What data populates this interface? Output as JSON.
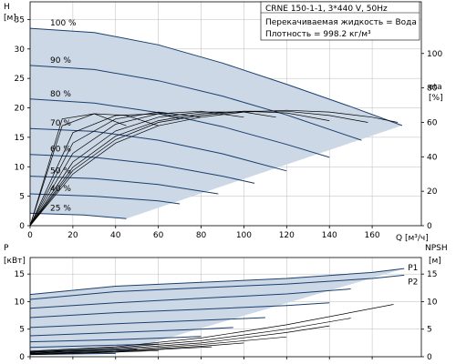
{
  "chart_data": [
    {
      "type": "line",
      "title": "CRNE 150-1-1, 3*440 V, 50Hz",
      "fluid_text": "Перекачиваемая жидкость = Вода",
      "density_text": "Плотность = 998.2 кг/м³",
      "left_axis": {
        "title_top": "H",
        "title_unit": "[м]",
        "ticks": [
          0,
          5,
          10,
          15,
          20,
          25,
          30,
          35
        ],
        "range": [
          0,
          38
        ]
      },
      "right_axis": {
        "title_top": "eta",
        "title_unit": "[%]",
        "ticks": [
          0,
          20,
          40,
          60,
          80,
          100
        ],
        "range": [
          0,
          130
        ]
      },
      "x_axis": {
        "label": "Q [м³/ч]",
        "ticks": [
          0,
          20,
          40,
          60,
          80,
          100,
          120,
          140,
          160
        ],
        "range": [
          0,
          183
        ]
      },
      "head_curves": [
        {
          "name": "100 %",
          "x": [
            0,
            30,
            60,
            90,
            120,
            150,
            174
          ],
          "y": [
            33.5,
            32.8,
            30.7,
            27.6,
            24.0,
            20.2,
            17.0
          ]
        },
        {
          "name": "90 %",
          "x": [
            0,
            30,
            60,
            90,
            120,
            155
          ],
          "y": [
            27.2,
            26.5,
            24.6,
            22.0,
            18.8,
            14.5
          ]
        },
        {
          "name": "80 %",
          "x": [
            0,
            30,
            60,
            90,
            120,
            140
          ],
          "y": [
            21.5,
            20.8,
            19.2,
            16.8,
            13.8,
            11.6
          ]
        },
        {
          "name": "70 %",
          "x": [
            0,
            30,
            60,
            90,
            120
          ],
          "y": [
            16.5,
            16.0,
            14.5,
            12.2,
            9.3
          ]
        },
        {
          "name": "60 %",
          "x": [
            0,
            30,
            60,
            90,
            105
          ],
          "y": [
            12.1,
            11.6,
            10.4,
            8.4,
            7.2
          ]
        },
        {
          "name": "50 %",
          "x": [
            0,
            30,
            60,
            88
          ],
          "y": [
            8.4,
            8.0,
            7.0,
            5.4
          ]
        },
        {
          "name": "40 %",
          "x": [
            0,
            30,
            60,
            70
          ],
          "y": [
            5.4,
            5.0,
            4.2,
            3.7
          ]
        },
        {
          "name": "25 %",
          "x": [
            0,
            25,
            45
          ],
          "y": [
            2.1,
            1.8,
            1.2
          ]
        }
      ],
      "efficiency_curves": [
        {
          "x": [
            0,
            20,
            40,
            60,
            80,
            100,
            120,
            140,
            160,
            172
          ],
          "y": [
            0,
            30,
            48,
            58,
            63,
            66,
            67,
            66,
            63,
            60
          ]
        },
        {
          "x": [
            0,
            20,
            40,
            60,
            80,
            100,
            120,
            140,
            158
          ],
          "y": [
            0,
            32,
            50,
            60,
            64,
            66.5,
            66.5,
            64,
            60
          ]
        },
        {
          "x": [
            0,
            20,
            40,
            60,
            80,
            100,
            120,
            140
          ],
          "y": [
            0,
            34,
            52,
            61,
            65,
            66.5,
            65.5,
            61
          ]
        },
        {
          "x": [
            0,
            20,
            40,
            60,
            80,
            100,
            115
          ],
          "y": [
            0,
            37,
            55,
            63,
            66,
            66,
            63
          ]
        },
        {
          "x": [
            0,
            20,
            40,
            60,
            80,
            100
          ],
          "y": [
            0,
            42,
            59,
            65,
            66.5,
            63
          ]
        },
        {
          "x": [
            0,
            20,
            40,
            60,
            80
          ],
          "y": [
            0,
            48,
            62,
            66,
            63
          ]
        },
        {
          "x": [
            0,
            20,
            40,
            60,
            70
          ],
          "y": [
            0,
            54,
            64,
            65,
            62
          ]
        },
        {
          "x": [
            0,
            15,
            30,
            45,
            60
          ],
          "y": [
            0,
            58,
            65,
            64,
            58
          ]
        },
        {
          "x": [
            0,
            15,
            30,
            45
          ],
          "y": [
            0,
            62,
            65,
            58
          ]
        }
      ]
    },
    {
      "type": "line",
      "left_axis": {
        "title_top": "P",
        "title_unit": "[кВт]",
        "ticks": [
          0,
          5,
          10,
          15
        ],
        "range": [
          0,
          18
        ]
      },
      "right_axis": {
        "title_top": "NPSH",
        "title_unit": "[м]",
        "ticks": [
          0,
          5,
          10,
          15
        ],
        "range": [
          0,
          18
        ]
      },
      "x_axis": {
        "range": [
          0,
          183
        ]
      },
      "power_p1_label": "P1",
      "power_p2_label": "P2",
      "power_curves": [
        {
          "x": [
            0,
            40,
            80,
            120,
            160,
            175
          ],
          "y": [
            11.3,
            12.8,
            13.5,
            14.2,
            15.3,
            16.0
          ]
        },
        {
          "x": [
            0,
            40,
            80,
            120,
            160,
            175
          ],
          "y": [
            10.4,
            11.8,
            12.5,
            13.2,
            14.2,
            14.8
          ]
        },
        {
          "x": [
            0,
            40,
            80,
            120,
            150
          ],
          "y": [
            8.8,
            9.8,
            10.6,
            11.4,
            12.3
          ]
        },
        {
          "x": [
            0,
            40,
            80,
            120,
            140
          ],
          "y": [
            7.1,
            8.0,
            8.6,
            9.3,
            9.8
          ]
        },
        {
          "x": [
            0,
            40,
            80,
            110
          ],
          "y": [
            5.3,
            6.0,
            6.6,
            7.1
          ]
        },
        {
          "x": [
            0,
            40,
            80,
            95
          ],
          "y": [
            3.8,
            4.4,
            5.0,
            5.3
          ]
        },
        {
          "x": [
            0,
            40,
            70,
            80
          ],
          "y": [
            2.7,
            3.1,
            3.5,
            3.7
          ]
        },
        {
          "x": [
            0,
            30,
            60
          ],
          "y": [
            1.7,
            2.0,
            2.3
          ]
        },
        {
          "x": [
            0,
            30,
            50
          ],
          "y": [
            0.9,
            1.1,
            1.3
          ]
        },
        {
          "x": [
            0,
            20,
            40
          ],
          "y": [
            0.4,
            0.5,
            0.6
          ]
        }
      ],
      "npsh_curves": [
        {
          "x": [
            0,
            40,
            80,
            120,
            170
          ],
          "y": [
            1.0,
            1.8,
            3.4,
            5.8,
            9.5
          ]
        },
        {
          "x": [
            0,
            40,
            80,
            120,
            150
          ],
          "y": [
            0.9,
            1.6,
            2.9,
            5.0,
            7.0
          ]
        },
        {
          "x": [
            0,
            40,
            80,
            120,
            140
          ],
          "y": [
            0.8,
            1.4,
            2.5,
            4.4,
            5.6
          ]
        },
        {
          "x": [
            0,
            40,
            80,
            120
          ],
          "y": [
            0.7,
            1.2,
            2.2,
            3.6
          ]
        },
        {
          "x": [
            0,
            40,
            80,
            100
          ],
          "y": [
            0.6,
            1.0,
            1.9,
            2.5
          ]
        },
        {
          "x": [
            0,
            40,
            70,
            85
          ],
          "y": [
            0.5,
            0.9,
            1.5,
            1.8
          ]
        },
        {
          "x": [
            0,
            30,
            60
          ],
          "y": [
            0.4,
            0.7,
            1.1
          ]
        }
      ]
    }
  ],
  "colors": {
    "fill": "#ccd8e6",
    "curve": "#1b3f6e",
    "black": "#000000",
    "grid": "#bbbbbb"
  }
}
